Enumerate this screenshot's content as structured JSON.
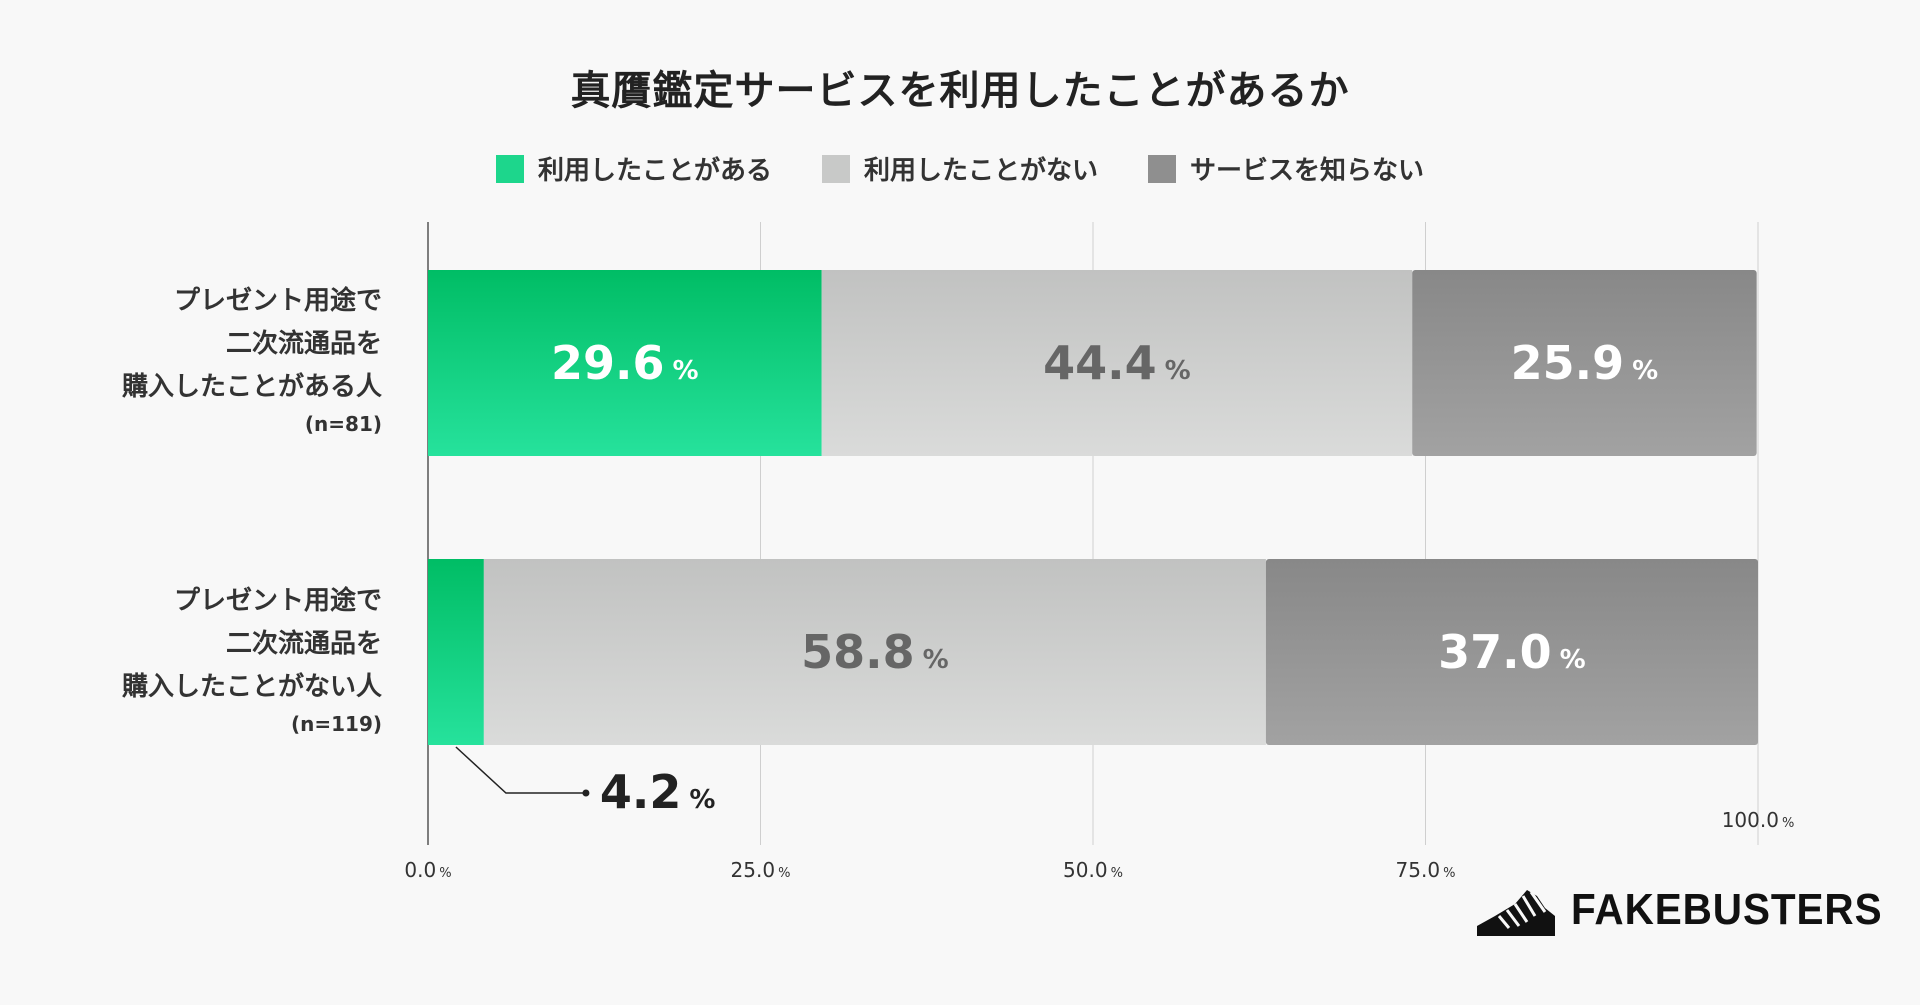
{
  "title": "真贋鑑定サービスを利用したことがあるか",
  "legend": [
    {
      "label": "利用したことがある",
      "color": "#1dd68c"
    },
    {
      "label": "利用したことがない",
      "color": "#c8c9c8"
    },
    {
      "label": "サービスを知らない",
      "color": "#8f8f8f"
    }
  ],
  "categories": [
    {
      "lines": [
        "プレゼント用途で",
        "二次流通品を",
        "購入したことがある人"
      ],
      "n": "(n=81)"
    },
    {
      "lines": [
        "プレゼント用途で",
        "二次流通品を",
        "購入したことがない人"
      ],
      "n": "(n=119)"
    }
  ],
  "chart_data": {
    "type": "bar",
    "orientation": "horizontal",
    "stacked": true,
    "title": "真贋鑑定サービスを利用したことがあるか",
    "categories": [
      "プレゼント用途で二次流通品を購入したことがある人 (n=81)",
      "プレゼント用途で二次流通品を購入したことがない人 (n=119)"
    ],
    "series": [
      {
        "name": "利用したことがある",
        "values": [
          29.6,
          4.2
        ],
        "labels": [
          "29.6",
          "4.2"
        ],
        "color": "#1dd68c"
      },
      {
        "name": "利用したことがない",
        "values": [
          44.4,
          58.8
        ],
        "labels": [
          "44.4",
          "58.8"
        ],
        "color": "#c8c9c8"
      },
      {
        "name": "サービスを知らない",
        "values": [
          25.9,
          37.0
        ],
        "labels": [
          "25.9",
          "37.0"
        ],
        "color": "#8f8f8f"
      }
    ],
    "label_colors": [
      "#ffffff",
      "#666666",
      "#ffffff"
    ],
    "outside_label": {
      "category": 1,
      "series": 0,
      "value": "4.2"
    },
    "ticks": [
      "0.0",
      "25.0",
      "50.0",
      "75.0",
      "100.0"
    ],
    "tick_values": [
      0,
      25,
      50,
      75,
      100
    ],
    "unit": "%",
    "xlim": [
      0,
      100
    ]
  },
  "logo": {
    "text": "FAKEBUSTERS"
  }
}
